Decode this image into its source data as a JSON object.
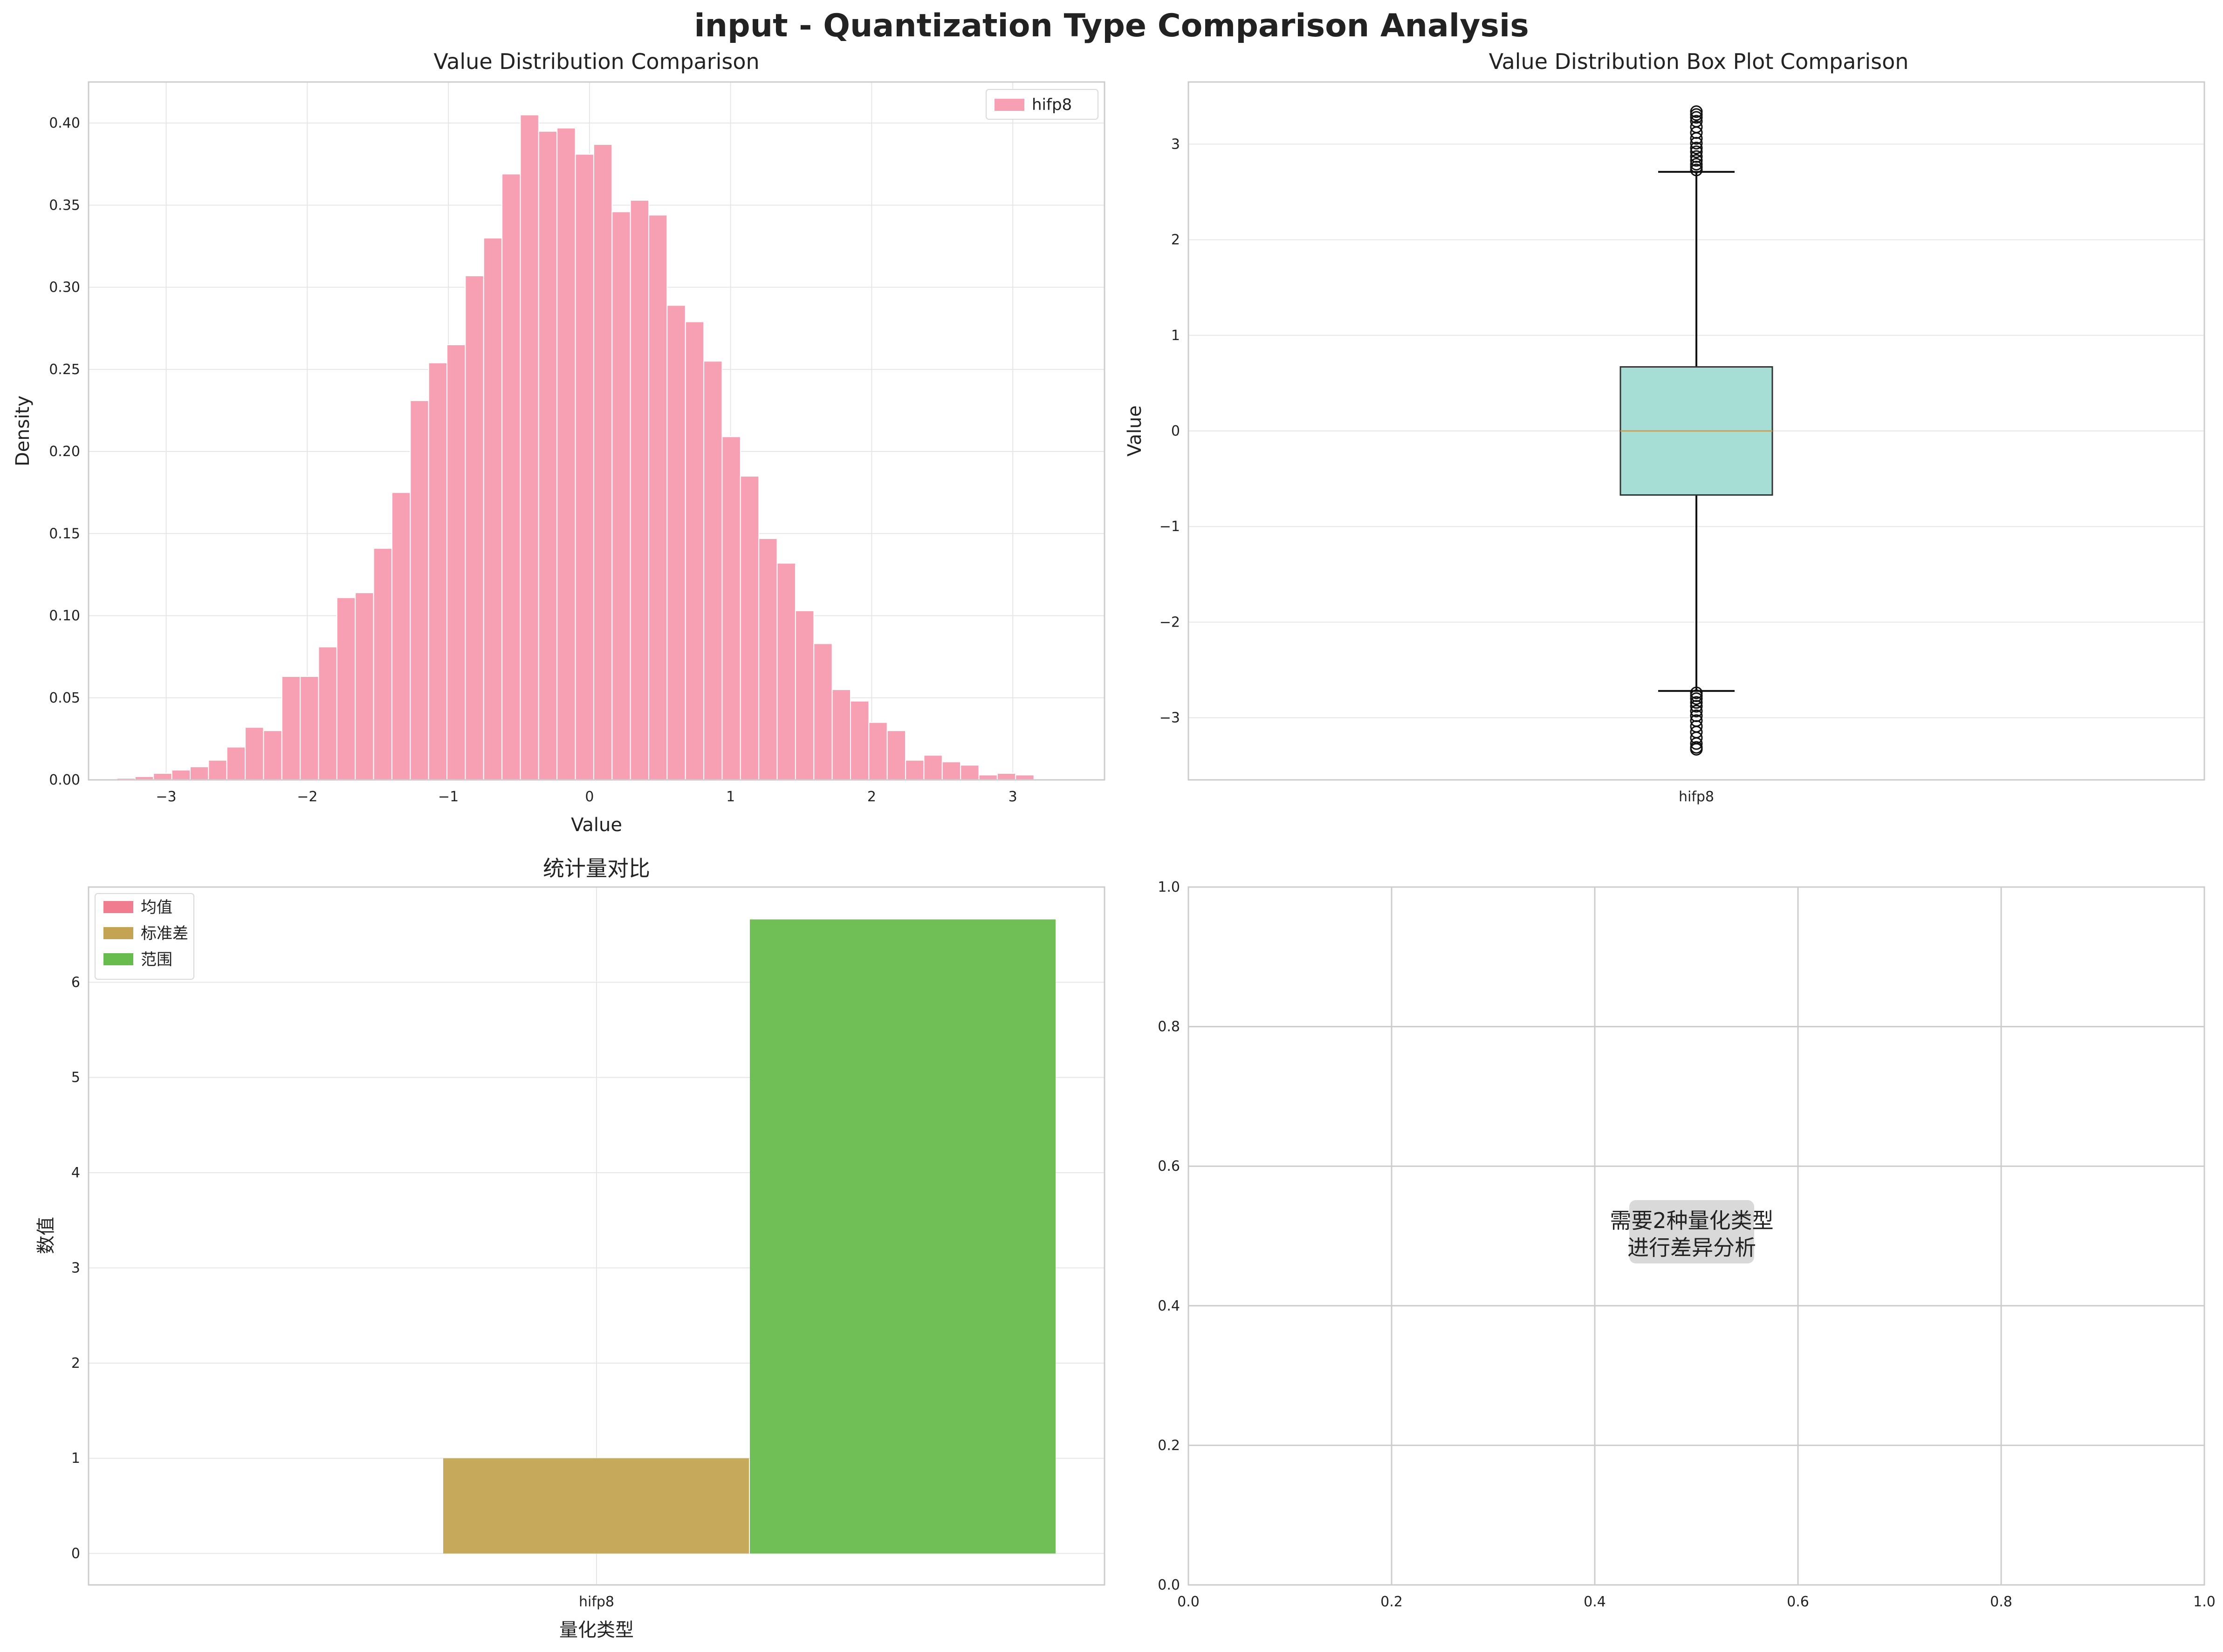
{
  "figure_title": "input - Quantization Type Comparison Analysis",
  "chart_data": [
    {
      "id": "hist",
      "type": "bar",
      "title": "Value Distribution Comparison",
      "xlabel": "Value",
      "ylabel": "Density",
      "xlim": [
        -3.55,
        3.65
      ],
      "ylim": [
        0,
        0.425
      ],
      "xticks": [
        -3,
        -2,
        -1,
        0,
        1,
        2,
        3
      ],
      "xtick_labels": [
        "−3",
        "−2",
        "−1",
        "0",
        "1",
        "2",
        "3"
      ],
      "yticks": [
        0,
        0.05,
        0.1,
        0.15,
        0.2,
        0.25,
        0.3,
        0.35,
        0.4
      ],
      "ytick_labels": [
        "0.00",
        "0.05",
        "0.10",
        "0.15",
        "0.20",
        "0.25",
        "0.30",
        "0.35",
        "0.40"
      ],
      "grid": true,
      "legend": {
        "position": "upper right",
        "entries": [
          "hifp8"
        ]
      },
      "color": "#f7a0b4",
      "series": [
        {
          "name": "hifp8",
          "bin_start": -3.35,
          "bin_width": 0.13,
          "values": [
            0.001,
            0.002,
            0.004,
            0.006,
            0.008,
            0.012,
            0.02,
            0.032,
            0.03,
            0.063,
            0.063,
            0.081,
            0.111,
            0.114,
            0.141,
            0.175,
            0.231,
            0.254,
            0.265,
            0.307,
            0.33,
            0.369,
            0.405,
            0.395,
            0.397,
            0.381,
            0.387,
            0.346,
            0.353,
            0.344,
            0.289,
            0.279,
            0.255,
            0.209,
            0.185,
            0.147,
            0.132,
            0.103,
            0.083,
            0.055,
            0.048,
            0.035,
            0.03,
            0.012,
            0.015,
            0.011,
            0.009,
            0.003,
            0.004,
            0.003
          ]
        }
      ]
    },
    {
      "id": "box",
      "type": "box",
      "title": "Value Distribution Box Plot Comparison",
      "xlabel": "",
      "ylabel": "Value",
      "ylim": [
        -3.65,
        3.65
      ],
      "yticks": [
        -3,
        -2,
        -1,
        0,
        1,
        2,
        3
      ],
      "ytick_labels": [
        "−3",
        "−2",
        "−1",
        "0",
        "1",
        "2",
        "3"
      ],
      "categories": [
        "hifp8"
      ],
      "grid": true,
      "box_color": "#a6ddd4",
      "median_color": "#c7a05a",
      "stats": {
        "q1": -0.67,
        "median": 0.0,
        "q3": 0.67,
        "whisker_low": -2.72,
        "whisker_high": 2.71,
        "outliers_high": [
          2.73,
          2.76,
          2.79,
          2.83,
          2.87,
          2.92,
          2.96,
          3.01,
          3.06,
          3.12,
          3.18,
          3.24,
          3.28,
          3.31,
          3.34
        ],
        "outliers_low": [
          -2.74,
          -2.77,
          -2.8,
          -2.84,
          -2.88,
          -2.93,
          -2.98,
          -3.03,
          -3.09,
          -3.15,
          -3.21,
          -3.27,
          -3.31,
          -3.33
        ]
      }
    },
    {
      "id": "stats",
      "type": "bar",
      "title": "统计量对比",
      "xlabel": "量化类型",
      "ylabel": "数值",
      "ylim": [
        -0.33,
        7.0
      ],
      "yticks": [
        0,
        1,
        2,
        3,
        4,
        5,
        6
      ],
      "ytick_labels": [
        "0",
        "1",
        "2",
        "3",
        "4",
        "5",
        "6"
      ],
      "categories": [
        "hifp8"
      ],
      "grid": true,
      "legend": {
        "position": "upper left"
      },
      "series": [
        {
          "name": "均值",
          "values": [
            0.0
          ],
          "color": "#f07c8f"
        },
        {
          "name": "标准差",
          "values": [
            1.0
          ],
          "color": "#c4a452"
        },
        {
          "name": "范围",
          "values": [
            6.66
          ],
          "color": "#68bc4d"
        }
      ]
    },
    {
      "id": "empty",
      "type": "scatter",
      "title": "",
      "xlim": [
        0,
        1
      ],
      "ylim": [
        0,
        1
      ],
      "xticks": [
        0,
        0.2,
        0.4,
        0.6,
        0.8,
        1
      ],
      "xtick_labels": [
        "0.0",
        "0.2",
        "0.4",
        "0.6",
        "0.8",
        "1.0"
      ],
      "yticks": [
        0,
        0.2,
        0.4,
        0.6,
        0.8,
        1
      ],
      "ytick_labels": [
        "0.0",
        "0.2",
        "0.4",
        "0.6",
        "0.8",
        "1.0"
      ],
      "grid": true,
      "note_lines": [
        "需要2种量化类型",
        "进行差异分析"
      ]
    }
  ]
}
